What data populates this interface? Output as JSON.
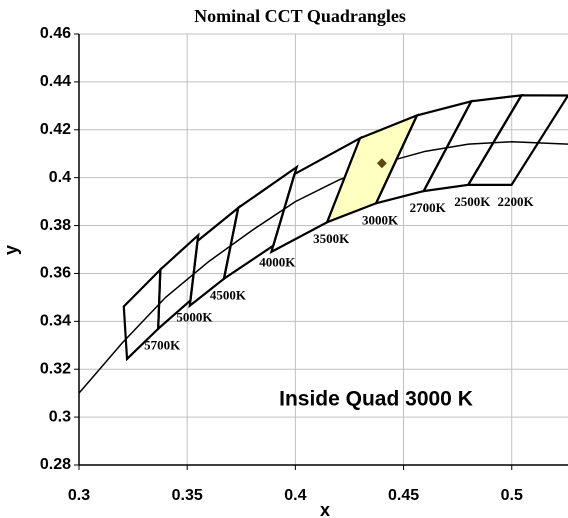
{
  "chart_data": {
    "type": "cct",
    "title": "Nominal CCT Quadrangles",
    "x_label": "x",
    "y_label": "y",
    "annotation": "Inside Quad 3000 K",
    "xlim": [
      0.3,
      0.526
    ],
    "ylim": [
      0.28,
      0.46
    ],
    "xticks": [
      0.3,
      0.35,
      0.4,
      0.45,
      0.5
    ],
    "yticks": [
      0.28,
      0.3,
      0.32,
      0.34,
      0.36,
      0.38,
      0.4,
      0.42,
      0.44,
      0.46
    ],
    "grid": true,
    "locus": {
      "color": "#000000",
      "x": [
        0.3,
        0.32,
        0.34,
        0.36,
        0.38,
        0.4,
        0.42,
        0.44,
        0.46,
        0.48,
        0.5,
        0.526
      ],
      "y": [
        0.31,
        0.331,
        0.35,
        0.365,
        0.378,
        0.39,
        0.399,
        0.406,
        0.411,
        0.414,
        0.415,
        0.414
      ]
    },
    "quads": [
      {
        "name": "5700K",
        "x": [
          0.3376,
          0.3207,
          0.3222,
          0.3366
        ],
        "y": [
          0.3616,
          0.3462,
          0.3243,
          0.3369
        ]
      },
      {
        "name": "5000K",
        "x": [
          0.3551,
          0.3376,
          0.3366,
          0.3515
        ],
        "y": [
          0.376,
          0.3616,
          0.3369,
          0.3487
        ]
      },
      {
        "name": "4500K",
        "x": [
          0.3736,
          0.3548,
          0.3512,
          0.367
        ],
        "y": [
          0.3874,
          0.3736,
          0.3465,
          0.3578
        ]
      },
      {
        "name": "4000K",
        "x": [
          0.4006,
          0.3736,
          0.367,
          0.3898
        ],
        "y": [
          0.4044,
          0.3874,
          0.3578,
          0.3716
        ]
      },
      {
        "name": "3500K",
        "x": [
          0.4299,
          0.3996,
          0.3889,
          0.4147
        ],
        "y": [
          0.4165,
          0.4015,
          0.369,
          0.3814
        ]
      },
      {
        "name": "3000K",
        "x": [
          0.4562,
          0.4299,
          0.4147,
          0.4373
        ],
        "y": [
          0.426,
          0.4165,
          0.3814,
          0.3893
        ],
        "fill": "#ffffc0"
      },
      {
        "name": "2700K",
        "x": [
          0.4813,
          0.4562,
          0.4373,
          0.4593
        ],
        "y": [
          0.4319,
          0.426,
          0.3893,
          0.3944
        ]
      },
      {
        "name": "2500K",
        "x": [
          0.5045,
          0.4813,
          0.4593,
          0.4799
        ],
        "y": [
          0.4344,
          0.4319,
          0.3944,
          0.397
        ]
      },
      {
        "name": "2200K",
        "x": [
          0.526,
          0.5045,
          0.4799,
          0.4999
        ],
        "y": [
          0.4343,
          0.4344,
          0.397,
          0.397
        ]
      }
    ],
    "point": {
      "x": 0.44,
      "y": 0.406,
      "color": "#5a4a10"
    }
  }
}
